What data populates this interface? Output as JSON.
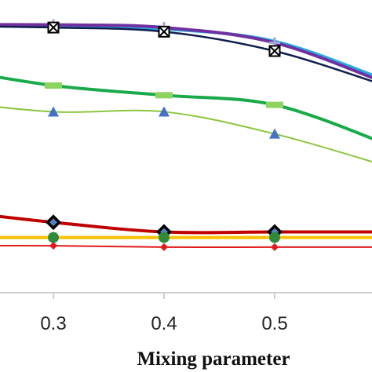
{
  "chart_data": {
    "type": "line",
    "title": "",
    "xlabel": "Mixing parameter",
    "ylabel": "",
    "x_ticks": [
      0.3,
      0.4,
      0.5
    ],
    "x_tick_labels": [
      "0.3",
      "0.4",
      "0.5"
    ],
    "visible_x_range": [
      0.2,
      0.6
    ],
    "grid": false,
    "legend": "none",
    "series": [
      {
        "color": "#29abe2",
        "marker": "none",
        "x": [
          0.2,
          0.3,
          0.4,
          0.5,
          0.6
        ],
        "y": [
          0.97,
          0.965,
          0.955,
          0.91,
          0.77
        ]
      },
      {
        "color": "#7030a0",
        "marker": "plus",
        "x": [
          0.2,
          0.3,
          0.4,
          0.5,
          0.6
        ],
        "y": [
          0.97,
          0.97,
          0.96,
          0.905,
          0.76
        ]
      },
      {
        "color": "#0f1f4d",
        "marker": "x-square",
        "x": [
          0.2,
          0.3,
          0.4,
          0.5,
          0.6
        ],
        "y": [
          0.965,
          0.96,
          0.945,
          0.875,
          0.75
        ]
      },
      {
        "color": "#1aaa4a",
        "marker": "dash",
        "x": [
          0.2,
          0.3,
          0.4,
          0.5,
          0.6
        ],
        "y": [
          0.815,
          0.75,
          0.715,
          0.68,
          0.54
        ]
      },
      {
        "color": "#8cc63f",
        "marker": "triangle",
        "x": [
          0.2,
          0.3,
          0.4,
          0.5,
          0.6
        ],
        "y": [
          0.695,
          0.655,
          0.655,
          0.575,
          0.46
        ]
      },
      {
        "color": "#c00000",
        "marker": "diamond",
        "x": [
          0.2,
          0.3,
          0.4,
          0.5,
          0.6
        ],
        "y": [
          0.3,
          0.255,
          0.22,
          0.22,
          0.22
        ]
      },
      {
        "color": "#ffc000",
        "marker": "circle",
        "x": [
          0.2,
          0.3,
          0.4,
          0.5,
          0.6
        ],
        "y": [
          0.2,
          0.2,
          0.2,
          0.2,
          0.2
        ]
      },
      {
        "color": "#e31a1c",
        "marker": "small-diamond",
        "x": [
          0.2,
          0.3,
          0.4,
          0.5,
          0.6
        ],
        "y": [
          0.17,
          0.17,
          0.165,
          0.165,
          0.165
        ]
      }
    ]
  }
}
